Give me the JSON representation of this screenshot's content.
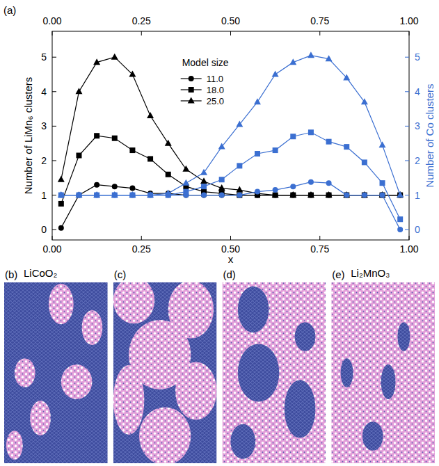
{
  "chart_data": {
    "type": "line",
    "panel_label": "(a)",
    "xlabel": "x",
    "ylabel": "Number of LiMn₆ clusters",
    "y2label": "Number of Co clusters",
    "legend_title": "Model size",
    "legend": "upper center",
    "xlim": [
      0,
      1
    ],
    "xticks": [
      {
        "value": 0,
        "label": "0.00"
      },
      {
        "value": 0.25,
        "label": "0.25"
      },
      {
        "value": 0.5,
        "label": "0.50"
      },
      {
        "value": 0.75,
        "label": "0.75"
      },
      {
        "value": 1,
        "label": "1.00"
      }
    ],
    "ylim": [
      -0.3,
      5.75
    ],
    "yticks": [
      0,
      1,
      2,
      3,
      4,
      5
    ],
    "y2lim": [
      -0.3,
      5.75
    ],
    "y2ticks": [
      0,
      1,
      2,
      3,
      4,
      5
    ],
    "x": [
      0.025,
      0.075,
      0.125,
      0.175,
      0.225,
      0.275,
      0.325,
      0.375,
      0.425,
      0.475,
      0.525,
      0.575,
      0.625,
      0.675,
      0.725,
      0.775,
      0.825,
      0.875,
      0.925,
      0.975
    ],
    "series": [
      {
        "name": "11.0",
        "color": "#000000",
        "marker": "circle",
        "values": [
          0.05,
          1.0,
          1.3,
          1.25,
          1.2,
          1.05,
          1.05,
          1.0,
          1.0,
          1.0,
          1.0,
          1.0,
          1.0,
          1.0,
          1.0,
          1.0,
          1.0,
          1.0,
          1.0,
          1.0
        ]
      },
      {
        "name": "18.0",
        "color": "#000000",
        "marker": "square",
        "values": [
          0.75,
          2.15,
          2.72,
          2.65,
          2.3,
          2.05,
          1.6,
          1.25,
          1.1,
          1.05,
          1.0,
          1.0,
          1.0,
          1.0,
          1.0,
          1.0,
          1.0,
          1.0,
          1.0,
          1.0
        ]
      },
      {
        "name": "25.0",
        "color": "#000000",
        "marker": "triangle",
        "values": [
          1.45,
          4.0,
          4.85,
          5.0,
          4.5,
          3.3,
          2.5,
          1.75,
          1.4,
          1.2,
          1.15,
          1.05,
          1.0,
          1.0,
          1.0,
          1.0,
          1.0,
          1.0,
          1.0,
          1.0
        ]
      },
      {
        "color": "#3b6fd1",
        "marker": "circle",
        "axis": "y2",
        "values": [
          1,
          1,
          1,
          1,
          1,
          1,
          1,
          1,
          1,
          1,
          1,
          1.1,
          1.15,
          1.25,
          1.38,
          1.35,
          1.0,
          1.0,
          1.0,
          0.0
        ]
      },
      {
        "color": "#3b6fd1",
        "marker": "square",
        "axis": "y2",
        "values": [
          1,
          1,
          1,
          1,
          1,
          1,
          1.0,
          1.1,
          1.25,
          1.45,
          1.85,
          2.2,
          2.3,
          2.7,
          2.82,
          2.55,
          2.4,
          1.95,
          1.35,
          0.3
        ]
      },
      {
        "color": "#3b6fd1",
        "marker": "triangle",
        "axis": "y2",
        "values": [
          1,
          1,
          1,
          1,
          1,
          1,
          1.05,
          1.35,
          1.65,
          2.4,
          3.05,
          3.7,
          4.5,
          4.85,
          5.05,
          4.95,
          4.4,
          3.7,
          2.45,
          1.0
        ]
      }
    ]
  },
  "panels": [
    {
      "label": "(b)",
      "title": "LiCoO₂"
    },
    {
      "label": "(c)"
    },
    {
      "label": "(d)"
    },
    {
      "label": "(e)",
      "title": "Li₂MnO₃"
    }
  ]
}
